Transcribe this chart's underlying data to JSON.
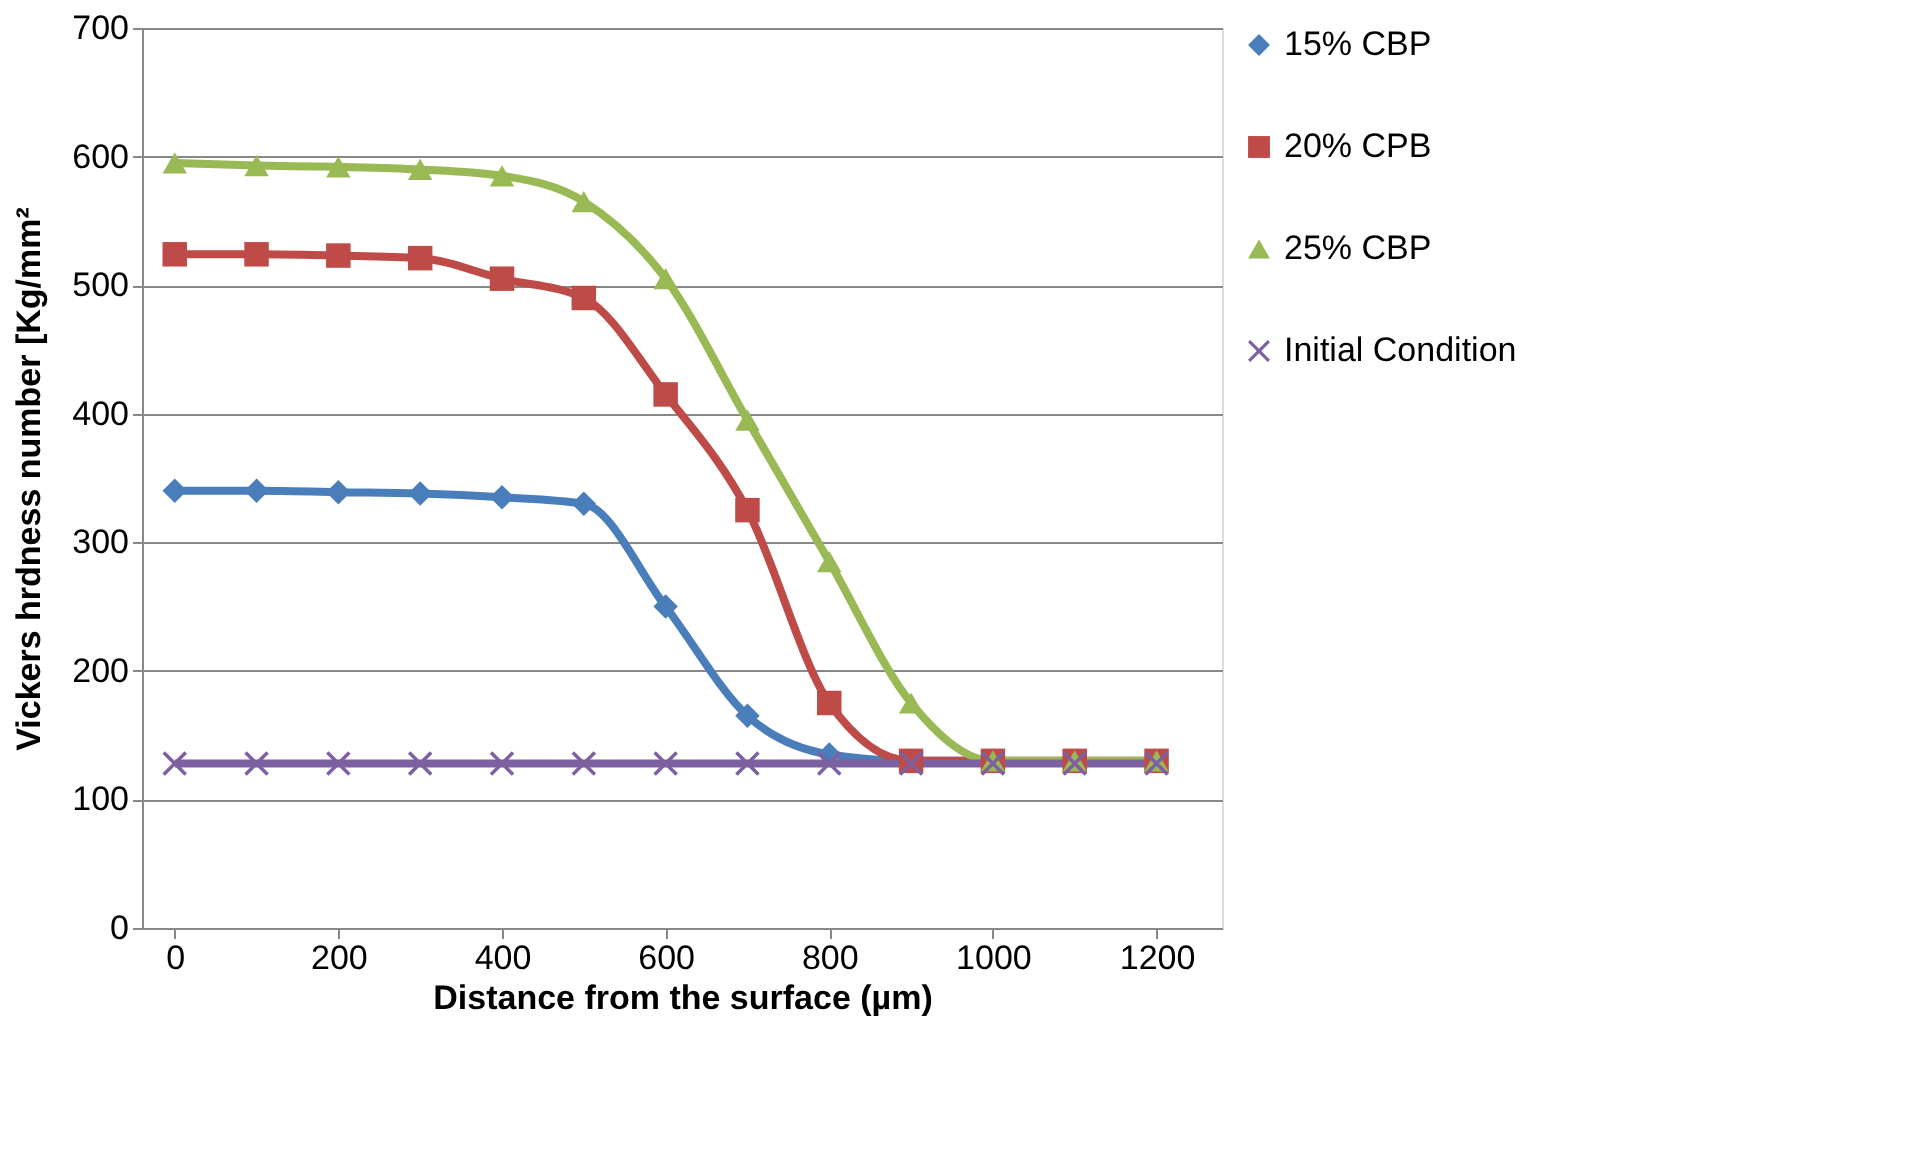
{
  "chart_data": {
    "type": "line",
    "xlabel": "Distance from the surface (µm)",
    "ylabel": "Vickers  hrdness number  [Kg/mm²",
    "x": [
      0,
      100,
      200,
      300,
      400,
      500,
      600,
      700,
      800,
      900,
      1000,
      1100,
      1200
    ],
    "series": [
      {
        "name": "15% CBP",
        "color": "#4a7ebb",
        "marker": "diamond",
        "values": [
          340,
          340,
          339,
          338,
          335,
          330,
          250,
          165,
          135,
          130,
          130,
          null,
          null
        ]
      },
      {
        "name": "20% CPB",
        "color": "#be4b48",
        "marker": "square",
        "values": [
          524,
          524,
          523,
          521,
          505,
          490,
          415,
          325,
          175,
          130,
          130,
          130,
          130
        ]
      },
      {
        "name": "25% CBP",
        "color": "#98b954",
        "marker": "triangle",
        "values": [
          595,
          593,
          592,
          590,
          585,
          565,
          505,
          395,
          285,
          175,
          130,
          130,
          130
        ]
      },
      {
        "name": "Initial Condition",
        "color": "#7d60a0",
        "marker": "cross",
        "values": [
          128,
          128,
          128,
          128,
          128,
          128,
          128,
          128,
          128,
          128,
          128,
          128,
          128
        ]
      }
    ],
    "xlim": [
      -40,
      1280
    ],
    "xticks": [
      0,
      200,
      400,
      600,
      800,
      1000,
      1200
    ],
    "ylim": [
      0,
      700
    ],
    "yticks": [
      0,
      100,
      200,
      300,
      400,
      500,
      600,
      700
    ],
    "grid": "y",
    "legend": "right",
    "line_style": "solid"
  }
}
